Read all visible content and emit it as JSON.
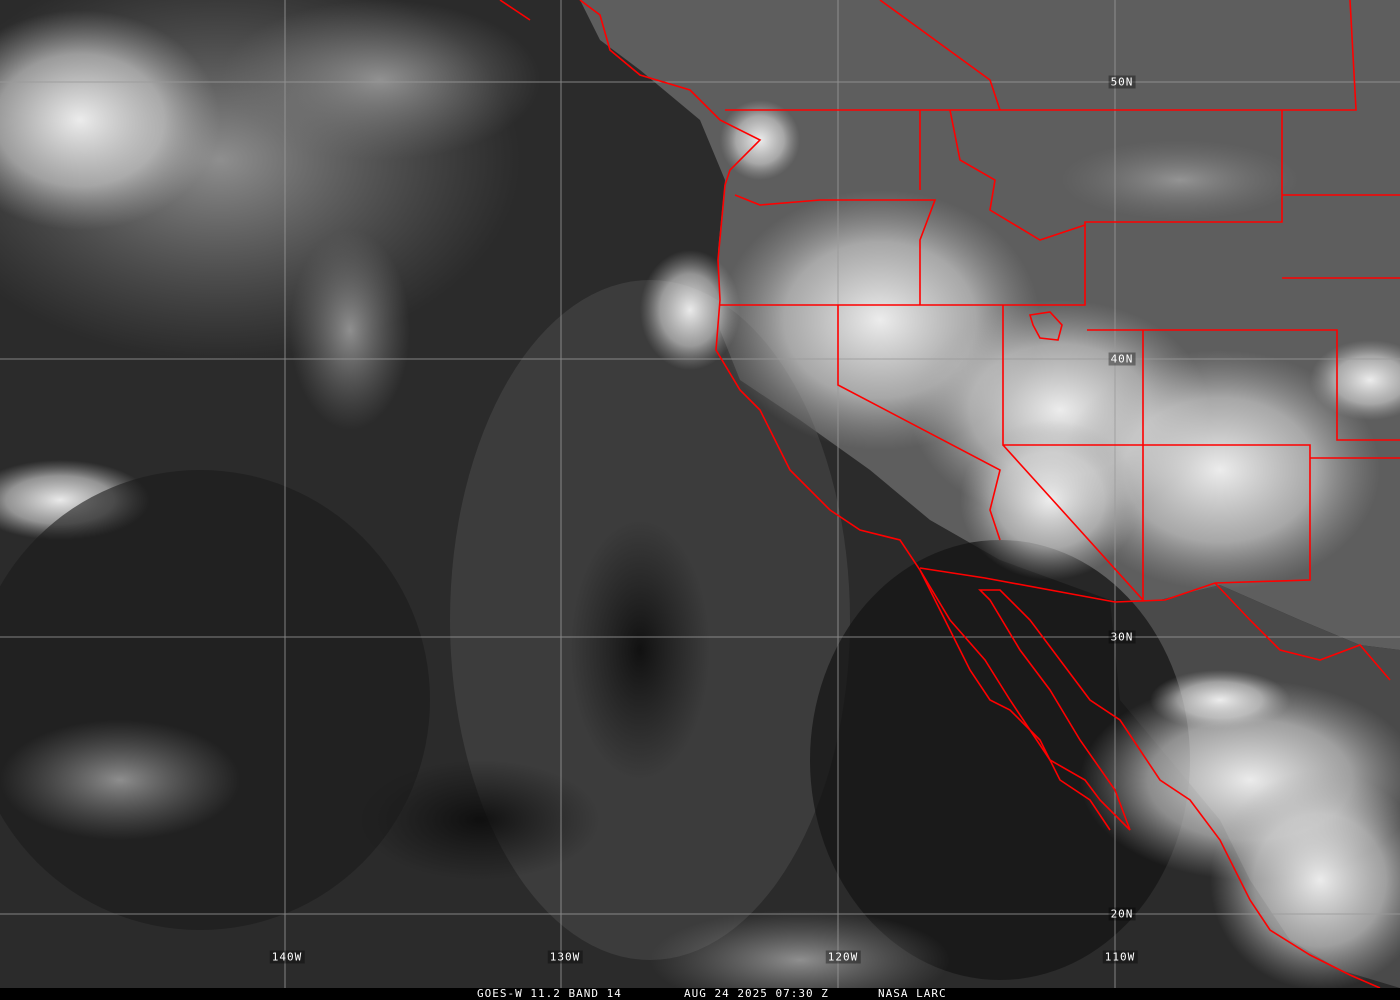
{
  "map": {
    "latitude_labels": [
      "50N",
      "40N",
      "30N",
      "20N"
    ],
    "longitude_labels": [
      "140W",
      "130W",
      "120W",
      "110W"
    ],
    "border_color": "#ff0000",
    "grid_color": "#9a9a9a"
  },
  "footer": {
    "satellite": "GOES-W 11.2 BAND 14",
    "datetime": "AUG 24 2025 07:30 Z",
    "credit": "NASA LARC"
  }
}
